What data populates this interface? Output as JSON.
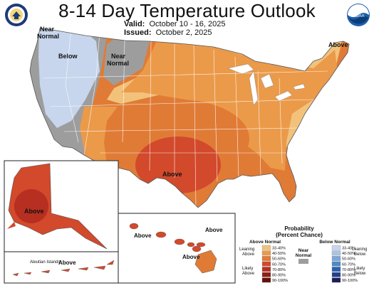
{
  "title": "8-14 Day Temperature Outlook",
  "valid": {
    "label": "Valid:",
    "value": "October 10 - 16, 2025"
  },
  "issued": {
    "label": "Issued:",
    "value": "October 2, 2025"
  },
  "logos": {
    "left": "doc-seal",
    "right": "noaa-logo",
    "noaa_text": "NOAA"
  },
  "map_labels": {
    "near_normal_nw": "Near\nNormal",
    "below": "Below",
    "near_normal_n": "Near\nNormal",
    "above_ne": "Above",
    "above_south": "Above",
    "alaska_above": "Above",
    "hawaii_above_1": "Above",
    "hawaii_above_2": "Above",
    "hawaii_above_3": "Above",
    "aleutian_islands": "Aleutian Islands",
    "aleutian_above": "Above"
  },
  "legend": {
    "title_1": "Probability",
    "title_2": "(Percent Chance)",
    "above_header": "Above Normal",
    "below_header": "Below Normal",
    "near_normal": "Near\nNormal",
    "leaning_above": "Leaning\nAbove",
    "likely_above": "Likely\nAbove",
    "leaning_below": "Leaning\nBelow",
    "likely_below": "Likely\nBelow",
    "bins": [
      "33-40%",
      "40-50%",
      "50-60%",
      "60-70%",
      "70-80%",
      "80-90%",
      "90-100%"
    ],
    "above_colors": [
      "#f2c27b",
      "#eb9a4a",
      "#e07b36",
      "#d2492b",
      "#b72f21",
      "#8e1f16",
      "#651109"
    ],
    "below_colors": [
      "#c7d6ed",
      "#a9c4e4",
      "#7da7d9",
      "#4d88c8",
      "#2a60ad",
      "#203f8c",
      "#1c1c5e"
    ],
    "near_color": "#9d9d9d"
  }
}
